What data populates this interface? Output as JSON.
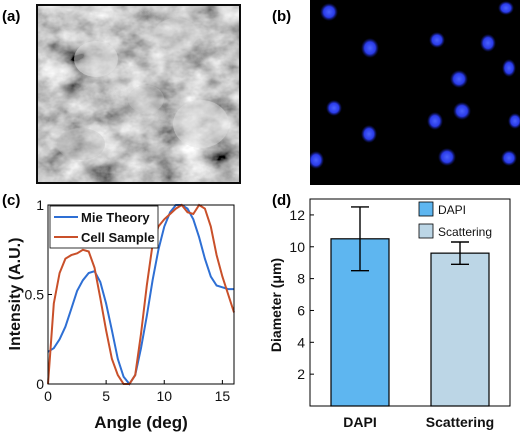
{
  "panels": {
    "a": {
      "label": "(a)"
    },
    "b": {
      "label": "(b)"
    },
    "c": {
      "label": "(c)"
    },
    "d": {
      "label": "(d)"
    }
  },
  "chart_data": [
    {
      "panel": "c",
      "type": "line",
      "xlabel": "Angle (deg)",
      "ylabel": "Intensity (A.U.)",
      "xlim": [
        0,
        16
      ],
      "ylim": [
        0,
        1
      ],
      "xticks": [
        "0",
        "5",
        "10",
        "15"
      ],
      "yticks": [
        "0",
        "0.5",
        "1"
      ],
      "legend": "top-left",
      "grid": false,
      "series": [
        {
          "name": "Mie Theory",
          "color": "#2e6fd4",
          "x": [
            0,
            0.5,
            1,
            1.5,
            2,
            2.5,
            3,
            3.5,
            4,
            4.5,
            5,
            5.5,
            6,
            6.5,
            7,
            7.5,
            8,
            8.5,
            9,
            9.5,
            10,
            10.5,
            11,
            11.5,
            12,
            12.5,
            13,
            13.5,
            14,
            14.5,
            15,
            15.5,
            16
          ],
          "y": [
            0.18,
            0.2,
            0.25,
            0.32,
            0.42,
            0.52,
            0.58,
            0.62,
            0.63,
            0.57,
            0.45,
            0.3,
            0.14,
            0.04,
            0.0,
            0.05,
            0.2,
            0.38,
            0.58,
            0.75,
            0.88,
            0.96,
            1.0,
            1.0,
            0.98,
            0.92,
            0.82,
            0.7,
            0.6,
            0.55,
            0.54,
            0.53,
            0.53
          ]
        },
        {
          "name": "Cell Sample",
          "color": "#c9502a",
          "x": [
            0,
            0.5,
            1,
            1.5,
            2,
            2.5,
            3,
            3.5,
            4,
            4.5,
            5,
            5.5,
            6,
            6.5,
            7,
            7.5,
            8,
            8.5,
            9,
            9.5,
            10,
            10.5,
            11,
            11.5,
            12,
            12.5,
            13,
            13.5,
            14,
            14.5,
            15,
            15.5,
            16
          ],
          "y": [
            0.0,
            0.45,
            0.62,
            0.7,
            0.72,
            0.73,
            0.75,
            0.74,
            0.65,
            0.48,
            0.3,
            0.14,
            0.05,
            0.0,
            0.0,
            0.05,
            0.28,
            0.55,
            0.78,
            0.88,
            0.92,
            0.95,
            0.98,
            1.0,
            0.96,
            0.95,
            1.0,
            0.98,
            0.88,
            0.72,
            0.6,
            0.5,
            0.4
          ]
        }
      ]
    },
    {
      "panel": "d",
      "type": "bar",
      "categories": [
        "DAPI",
        "Scattering"
      ],
      "values": [
        10.5,
        9.6
      ],
      "errors": [
        2.0,
        0.7
      ],
      "colors": [
        "#5eb6f0",
        "#bcd6e6"
      ],
      "ylabel": "Diameter (μm)",
      "ylim": [
        0,
        13
      ],
      "yticks": [
        "2",
        "4",
        "6",
        "8",
        "10",
        "12"
      ],
      "legend": "top-right",
      "legend_entries": [
        "DAPI",
        "Scattering"
      ]
    }
  ]
}
